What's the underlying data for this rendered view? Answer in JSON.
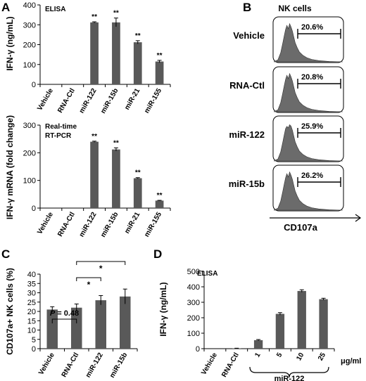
{
  "panels": {
    "A": {
      "letter": "A",
      "top": {
        "note": "ELISA",
        "ylabel": "IFN-γ (ng/mL)",
        "ylim": [
          0,
          400
        ],
        "yticks": [
          0,
          100,
          200,
          300,
          400
        ],
        "categories": [
          "Vehicle",
          "RNA-Ctl",
          "miR-122",
          "miR-15b",
          "miR-21",
          "miR-155"
        ],
        "values": [
          0,
          0,
          312,
          312,
          212,
          115
        ],
        "errors": [
          0,
          0,
          3,
          22,
          8,
          6
        ],
        "stars": [
          "",
          "",
          "**",
          "**",
          "**",
          "**"
        ]
      },
      "bottom": {
        "note_lines": [
          "Real-time",
          "RT-PCR"
        ],
        "ylabel": "IFN-γ mRNA (fold change)",
        "ylim": [
          0,
          300
        ],
        "yticks": [
          0,
          100,
          200,
          300
        ],
        "categories": [
          "Vehicle",
          "RNA-Ctl",
          "miR-122",
          "miR-15b",
          "miR-21",
          "miR-155"
        ],
        "values": [
          0,
          0,
          240,
          212,
          108,
          27
        ],
        "errors": [
          0,
          0,
          2,
          6,
          2,
          1
        ],
        "stars": [
          "",
          "",
          "**",
          "**",
          "**",
          "**"
        ]
      }
    },
    "B": {
      "letter": "B",
      "title": "NK cells",
      "xlabel": "CD107a",
      "rows": [
        {
          "label": "Vehicle",
          "percent": "20.6%"
        },
        {
          "label": "RNA-Ctl",
          "percent": "20.8%"
        },
        {
          "label": "miR-122",
          "percent": "25.9%"
        },
        {
          "label": "miR-15b",
          "percent": "26.2%"
        }
      ]
    },
    "C": {
      "letter": "C",
      "ylabel": "CD107a+ NK cells (%)",
      "ylim": [
        0,
        40
      ],
      "yticks": [
        0,
        5,
        10,
        15,
        20,
        25,
        30,
        35,
        40
      ],
      "categories": [
        "Vehicle",
        "RNA-Ctl",
        "miR-122",
        "miR-15b"
      ],
      "values": [
        21,
        22,
        26,
        28
      ],
      "errors": [
        1.5,
        2,
        2.5,
        4
      ],
      "comparisons": [
        {
          "label_p": "P",
          "label_rest": " = 0.48",
          "from": 0,
          "to": 1
        },
        {
          "label": "*",
          "from": 1,
          "to": 2
        },
        {
          "label": "*",
          "from": 1,
          "to": 3
        }
      ]
    },
    "D": {
      "letter": "D",
      "note": "ELISA",
      "ylabel": "IFN-γ (ng/mL)",
      "ylim": [
        0,
        500
      ],
      "yticks": [
        0,
        100,
        200,
        300,
        400,
        500
      ],
      "categories": [
        "Vehicle",
        "RNA-Ctl",
        "1",
        "5",
        "10",
        "25"
      ],
      "values": [
        0,
        2,
        55,
        225,
        373,
        320
      ],
      "errors": [
        0,
        1,
        4,
        8,
        8,
        6
      ],
      "unit": "μg/ml",
      "group_label": "miR-122"
    }
  },
  "chart_data": [
    {
      "type": "bar",
      "title": "ELISA",
      "ylabel": "IFN-γ (ng/mL)",
      "ylim": [
        0,
        400
      ],
      "categories": [
        "Vehicle",
        "RNA-Ctl",
        "miR-122",
        "miR-15b",
        "miR-21",
        "miR-155"
      ],
      "values": [
        0,
        0,
        312,
        312,
        212,
        115
      ]
    },
    {
      "type": "bar",
      "title": "Real-time RT-PCR",
      "ylabel": "IFN-γ mRNA (fold change)",
      "ylim": [
        0,
        300
      ],
      "categories": [
        "Vehicle",
        "RNA-Ctl",
        "miR-122",
        "miR-15b",
        "miR-21",
        "miR-155"
      ],
      "values": [
        0,
        0,
        240,
        212,
        108,
        27
      ]
    },
    {
      "type": "histogram",
      "title": "NK cells",
      "xlabel": "CD107a",
      "categories": [
        "Vehicle",
        "RNA-Ctl",
        "miR-122",
        "miR-15b"
      ],
      "values": [
        20.6,
        20.8,
        25.9,
        26.2
      ]
    },
    {
      "type": "bar",
      "ylabel": "CD107a+ NK cells (%)",
      "ylim": [
        0,
        40
      ],
      "categories": [
        "Vehicle",
        "RNA-Ctl",
        "miR-122",
        "miR-15b"
      ],
      "values": [
        21,
        22,
        26,
        28
      ]
    },
    {
      "type": "bar",
      "title": "ELISA",
      "ylabel": "IFN-γ (ng/mL)",
      "ylim": [
        0,
        500
      ],
      "categories": [
        "Vehicle",
        "RNA-Ctl",
        "1",
        "5",
        "10",
        "25"
      ],
      "values": [
        0,
        2,
        55,
        225,
        373,
        320
      ]
    }
  ]
}
